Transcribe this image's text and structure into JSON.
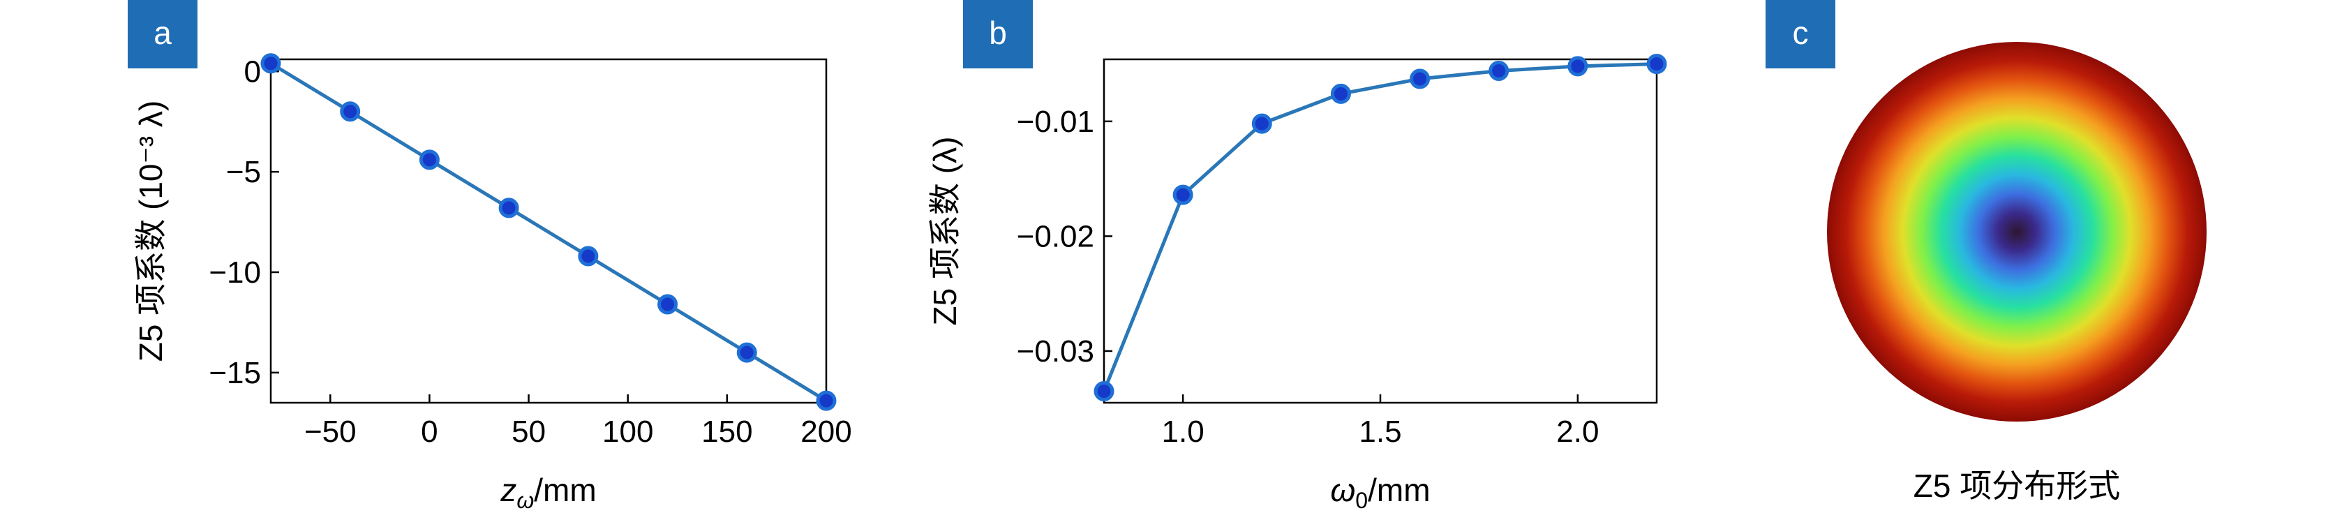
{
  "panels": [
    {
      "letter": "a",
      "color": "#1f6db5"
    },
    {
      "letter": "b",
      "color": "#1f6db5"
    },
    {
      "letter": "c",
      "color": "#1f6db5"
    }
  ],
  "colors": {
    "line": "#2a77b8",
    "marker_edge": "#1f6fd6",
    "marker_fill": "#1539c8"
  },
  "chart_data": [
    {
      "type": "line",
      "x": [
        -80,
        -40,
        0,
        40,
        80,
        120,
        160,
        200
      ],
      "y": [
        0.4,
        -2.0,
        -4.4,
        -6.8,
        -9.2,
        -11.6,
        -14.0,
        -16.4
      ],
      "xlim": [
        -80,
        200
      ],
      "ylim": [
        -16.5,
        0.6
      ],
      "xticks": [
        -50,
        0,
        50,
        100,
        150,
        200
      ],
      "xtick_labels": [
        "−50",
        "0",
        "50",
        "100",
        "150",
        "200"
      ],
      "yticks": [
        0,
        -5,
        -10,
        -15
      ],
      "ytick_labels": [
        "0",
        "−5",
        "−10",
        "−15"
      ],
      "xlabel_main": "z",
      "xlabel_sub": "ω",
      "xlabel_rest": "/mm",
      "ylabel": "Z5 项系数 (10⁻³ λ)"
    },
    {
      "type": "line",
      "x": [
        0.8,
        1.0,
        1.2,
        1.4,
        1.6,
        1.8,
        2.0,
        2.2
      ],
      "y": [
        -0.0335,
        -0.0164,
        -0.0102,
        -0.0076,
        -0.0063,
        -0.0056,
        -0.0052,
        -0.005
      ],
      "xlim": [
        0.8,
        2.2
      ],
      "ylim": [
        -0.0345,
        -0.0046
      ],
      "xticks": [
        1.0,
        1.5,
        2.0
      ],
      "xtick_labels": [
        "1.0",
        "1.5",
        "2.0"
      ],
      "yticks": [
        -0.01,
        -0.02,
        -0.03
      ],
      "ytick_labels": [
        "−0.01",
        "−0.02",
        "−0.03"
      ],
      "xlabel_main": "ω",
      "xlabel_sub": "0",
      "xlabel_rest": "/mm",
      "ylabel": "Z5 项系数 (λ)"
    }
  ],
  "heatmap": {
    "caption": "Z5 项分布形式",
    "colormap": [
      "#2d1630",
      "#3b2a8c",
      "#3d6fe0",
      "#29b8e0",
      "#27e0a0",
      "#7ff04a",
      "#e0e02a",
      "#f5a020",
      "#e35410",
      "#b81a08",
      "#8c0b04"
    ]
  }
}
